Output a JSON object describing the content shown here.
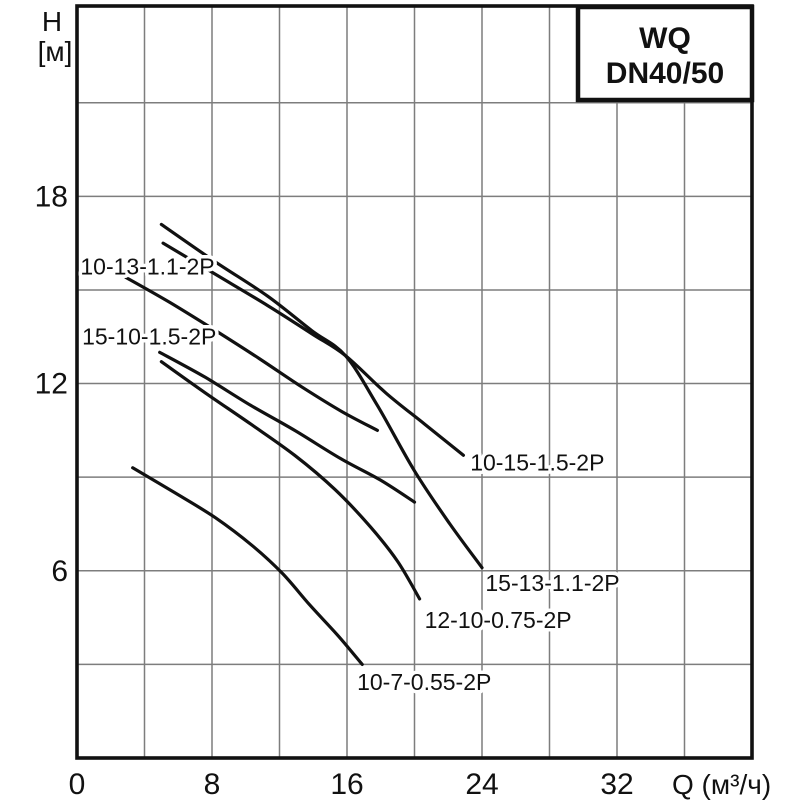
{
  "title_box": {
    "line1": "WQ",
    "line2": "DN40/50"
  },
  "colors": {
    "background": "#ffffff",
    "curve": "#111111",
    "grid": "#7d7d7d",
    "axis": "#111111",
    "text": "#111111"
  },
  "y_axis": {
    "name": "H",
    "unit": "[м]",
    "tick_labels": [
      18,
      12,
      6
    ],
    "grid_values": [
      3,
      6,
      9,
      12,
      15,
      18,
      21
    ]
  },
  "x_axis": {
    "name": "Q (м³/ч)",
    "tick_labels": [
      0,
      8,
      16,
      24,
      32
    ],
    "grid_values": [
      4,
      8,
      12,
      16,
      20,
      24,
      28,
      32,
      36
    ]
  },
  "chart_data": {
    "type": "line",
    "title": "WQ DN40/50",
    "xlabel": "Q (м³/ч)",
    "ylabel": "H [м]",
    "xlim": [
      0,
      40
    ],
    "ylim": [
      0,
      24.1
    ],
    "grid": true,
    "series": [
      {
        "name": "15-13-1.1-2P",
        "points": [
          [
            5.0,
            17.1
          ],
          [
            8.2,
            15.9
          ],
          [
            11.3,
            14.8
          ],
          [
            13.9,
            13.7
          ],
          [
            15.9,
            12.9
          ],
          [
            17.8,
            11.3
          ],
          [
            20.0,
            9.2
          ],
          [
            22.1,
            7.5
          ],
          [
            24.0,
            6.1
          ]
        ],
        "label": {
          "text": "15-13-1.1-2P",
          "q": 24.2,
          "h": 5.35,
          "anchor": "start"
        }
      },
      {
        "name": "10-15-1.5-2P",
        "points": [
          [
            5.1,
            16.5
          ],
          [
            8.2,
            15.5
          ],
          [
            11.3,
            14.5
          ],
          [
            13.9,
            13.6
          ],
          [
            15.9,
            12.9
          ],
          [
            18.3,
            11.7
          ],
          [
            20.6,
            10.7
          ],
          [
            22.9,
            9.7
          ]
        ],
        "label": {
          "text": "10-15-1.5-2P",
          "q": 23.3,
          "h": 9.22,
          "anchor": "start"
        }
      },
      {
        "name": "10-13-1.1-2P",
        "points": [
          [
            2.9,
            15.4
          ],
          [
            5.5,
            14.6
          ],
          [
            8.2,
            13.7
          ],
          [
            10.8,
            12.8
          ],
          [
            13.3,
            11.9
          ],
          [
            15.7,
            11.1
          ],
          [
            17.8,
            10.5
          ]
        ],
        "label": {
          "text": "10-13-1.1-2P",
          "q": 0.2,
          "h": 15.5,
          "anchor": "start"
        }
      },
      {
        "name": "15-10-1.5-2P",
        "points": [
          [
            4.9,
            13.0
          ],
          [
            7.6,
            12.2
          ],
          [
            10.3,
            11.3
          ],
          [
            12.9,
            10.5
          ],
          [
            15.6,
            9.6
          ],
          [
            18.0,
            8.9
          ],
          [
            20.0,
            8.2
          ]
        ],
        "label": {
          "text": "15-10-1.5-2P",
          "q": 0.3,
          "h": 13.25,
          "anchor": "start"
        }
      },
      {
        "name": "12-10-0.75-2P",
        "points": [
          [
            5.0,
            12.7
          ],
          [
            7.6,
            11.7
          ],
          [
            10.3,
            10.7
          ],
          [
            12.9,
            9.7
          ],
          [
            15.3,
            8.6
          ],
          [
            17.4,
            7.4
          ],
          [
            19.0,
            6.3
          ],
          [
            20.3,
            5.1
          ]
        ],
        "label": {
          "text": "12-10-0.75-2P",
          "q": 20.6,
          "h": 4.17,
          "anchor": "start"
        }
      },
      {
        "name": "10-7-0.55-2P",
        "points": [
          [
            3.3,
            9.3
          ],
          [
            5.8,
            8.5
          ],
          [
            8.2,
            7.7
          ],
          [
            10.4,
            6.8
          ],
          [
            12.2,
            5.9
          ],
          [
            13.8,
            4.9
          ],
          [
            15.5,
            3.9
          ],
          [
            16.9,
            3.0
          ]
        ],
        "label": {
          "text": "10-7-0.55-2P",
          "q": 16.6,
          "h": 2.18,
          "anchor": "start"
        }
      }
    ]
  }
}
